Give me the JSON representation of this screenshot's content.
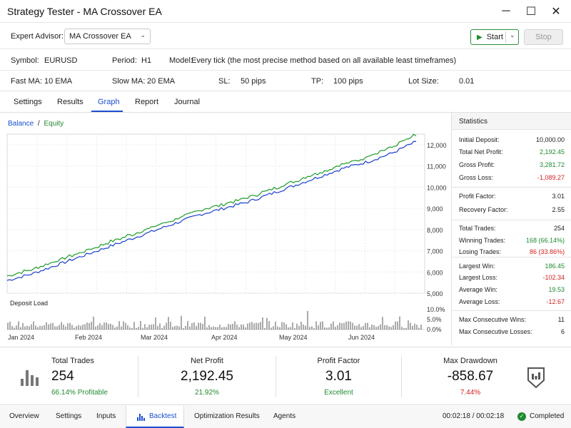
{
  "window": {
    "title": "Strategy Tester - MA Crossover EA",
    "minimize": "─",
    "maximize": "☐",
    "close": "✕"
  },
  "config": {
    "expert_label": "Expert Advisor:",
    "expert_value": "MA Crossover EA",
    "start_label": "Start",
    "stop_label": "Stop",
    "symbol_label": "Symbol:",
    "symbol_value": "EURUSD",
    "period_label": "Period:",
    "period_value": "H1",
    "model_label": "Model:",
    "model_value": "Every tick (the most precise method based on all available least timeframes)",
    "fastma_label": "Fast MA:",
    "fastma_value": "10 EMA",
    "slowma_label": "Slow MA:",
    "slowma_value": "20 EMA",
    "sl_label": "SL:",
    "sl_value": "50 pips",
    "tp_label": "TP:",
    "tp_value": "100 pips",
    "lot_label": "Lot Size:",
    "lot_value": "0.01"
  },
  "tabs": [
    "Settings",
    "Results",
    "Graph",
    "Report",
    "Journal"
  ],
  "active_tab": "Graph",
  "chart": {
    "legend_balance": "Balance",
    "legend_sep": "/",
    "legend_equity": "Equity",
    "balance_color": "#1a3fd0",
    "equity_color": "#1e9a2a",
    "deposit_label": "Deposit Load",
    "deposit_color": "#555555"
  },
  "chart_data": {
    "type": "line",
    "x_ticks": [
      "Jan 2024",
      "Feb 2024",
      "Mar 2024",
      "Apr 2024",
      "May 2024",
      "Jun 2024"
    ],
    "y_ticks": [
      "12,000",
      "11,000",
      "10,000",
      "9,000",
      "8,000",
      "7,000",
      "6,000",
      "5,000"
    ],
    "ylim": [
      5000,
      12500
    ],
    "series": [
      {
        "name": "Balance",
        "values": [
          5600,
          5900,
          6300,
          6700,
          7100,
          7500,
          7900,
          8300,
          8700,
          9000,
          9300,
          9700,
          10100,
          10500,
          10900,
          11200,
          11600,
          12150
        ]
      },
      {
        "name": "Equity",
        "values": [
          5800,
          6100,
          6500,
          6900,
          7300,
          7700,
          8100,
          8500,
          8900,
          9200,
          9500,
          9900,
          10300,
          10700,
          11100,
          11500,
          11900,
          12400
        ]
      }
    ],
    "deposit_load": {
      "y_ticks": [
        "10.0%",
        "5.0%",
        "0.0%"
      ],
      "ylim": [
        0,
        10
      ]
    }
  },
  "stats": {
    "title": "Statistics",
    "items": [
      {
        "label": "Initial Deposit:",
        "value": "10,000.00",
        "color": "#222222"
      },
      {
        "label": "Total Net Profit:",
        "value": "2,192.45",
        "color": "#1f8a2d"
      },
      {
        "label": "Gross Profit:",
        "value": "3,281.72",
        "color": "#1f8a2d"
      },
      {
        "label": "Gross Loss:",
        "value": "-1,089.27",
        "color": "#d42020"
      },
      {
        "label": "Profit Factor:",
        "value": "3.01",
        "color": "#222222"
      },
      {
        "label": "Recovery Factor:",
        "value": "2.55",
        "color": "#222222"
      },
      {
        "label": "Total Trades:",
        "value": "254",
        "color": "#222222"
      },
      {
        "label": "Winning Trades:",
        "value": "168 (66.14%)",
        "color": "#1f8a2d"
      },
      {
        "label": "Losing Trades:",
        "value": "86 (33.86%)",
        "color": "#d42020"
      },
      {
        "label": "Largest Win:",
        "value": "186.45",
        "color": "#1f8a2d"
      },
      {
        "label": "Largest Loss:",
        "value": "-102.34",
        "color": "#d42020"
      },
      {
        "label": "Average Win:",
        "value": "19.53",
        "color": "#1f8a2d"
      },
      {
        "label": "Average Loss:",
        "value": "-12.67",
        "color": "#d42020"
      },
      {
        "label": "Max Consecutive Wins:",
        "value": "11",
        "color": "#222222"
      },
      {
        "label": "Max Consecutive Losses:",
        "value": "6",
        "color": "#222222"
      }
    ]
  },
  "summary": {
    "total_trades": {
      "title": "Total Trades",
      "value": "254",
      "sub": "66.14% Profitable"
    },
    "net_profit": {
      "title": "Net Profit",
      "value": "2,192.45",
      "sub": "21.92%"
    },
    "profit_factor": {
      "title": "Profit Factor",
      "value": "3.01",
      "sub": "Excellent"
    },
    "max_drawdown": {
      "title": "Max Drawdown",
      "value": "-858.67",
      "sub": "7.44%"
    }
  },
  "bottom": {
    "tabs": [
      "Overview",
      "Settings",
      "Inputs",
      "Backtest",
      "Optimization Results",
      "Agents"
    ],
    "active": "Backtest",
    "time": "00:02:18 / 00:02:18",
    "status": "Completed"
  }
}
